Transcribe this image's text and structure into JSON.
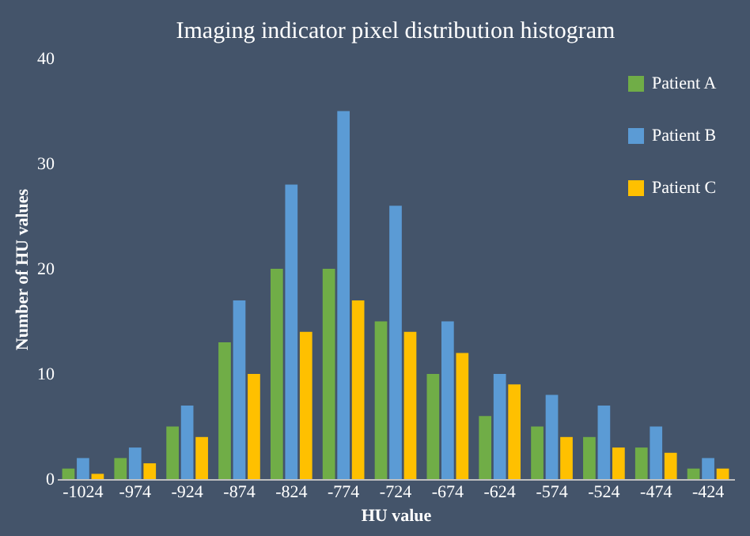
{
  "chart_data": {
    "type": "bar",
    "title": "Imaging indicator pixel distribution histogram",
    "xlabel": "HU value",
    "ylabel": "Number of HU values",
    "categories": [
      "-1024",
      "-974",
      "-924",
      "-874",
      "-824",
      "-774",
      "-724",
      "-674",
      "-624",
      "-574",
      "-524",
      "-474",
      "-424"
    ],
    "series": [
      {
        "name": "Patient A",
        "color": "#70ad47",
        "values": [
          1,
          2,
          5,
          13,
          20,
          20,
          15,
          10,
          6,
          5,
          4,
          3,
          1
        ]
      },
      {
        "name": "Patient B",
        "color": "#5b9bd5",
        "values": [
          2,
          3,
          7,
          17,
          28,
          35,
          26,
          15,
          10,
          8,
          7,
          5,
          2
        ]
      },
      {
        "name": "Patient C",
        "color": "#ffc000",
        "values": [
          0.5,
          1.5,
          4,
          10,
          14,
          17,
          14,
          12,
          9,
          4,
          3,
          2.5,
          1
        ]
      }
    ],
    "ylim": [
      0,
      40
    ],
    "yticks": [
      0,
      10,
      20,
      30,
      40
    ],
    "grid": false,
    "legend": "top right"
  }
}
